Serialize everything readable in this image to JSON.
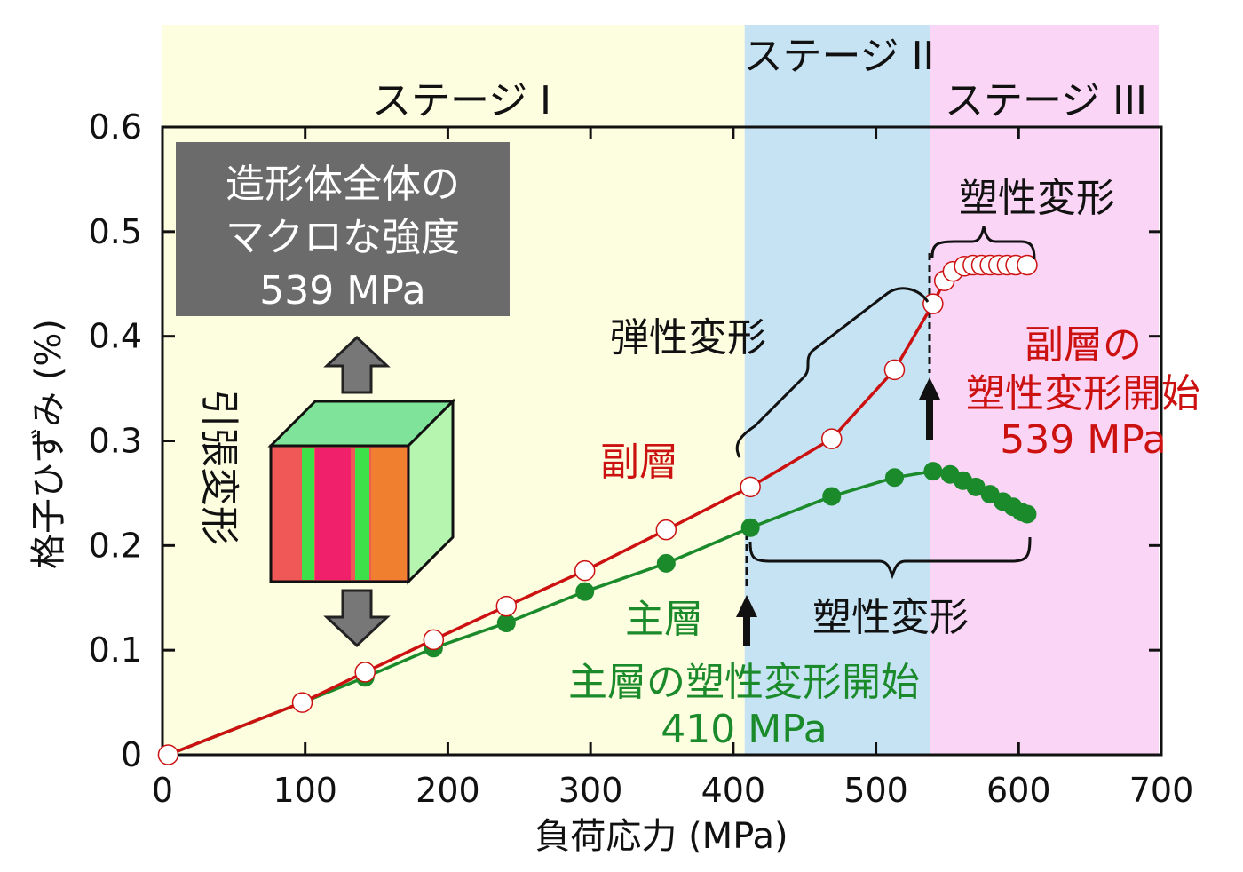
{
  "chart_data": {
    "type": "line",
    "xlabel": "負荷応力 (MPa)",
    "ylabel": "格子ひずみ (%)",
    "xlim": [
      0,
      700
    ],
    "ylim": [
      0,
      0.6
    ],
    "xticks": [
      "0",
      "100",
      "200",
      "300",
      "400",
      "500",
      "600",
      "700"
    ],
    "yticks": [
      "0",
      "0.1",
      "0.2",
      "0.3",
      "0.4",
      "0.5",
      "0.6"
    ],
    "grid": false,
    "stages": [
      {
        "label": "ステージ I",
        "from": 0,
        "to": 408,
        "color": "#fdfde0"
      },
      {
        "label": "ステージ II",
        "from": 408,
        "to": 538,
        "color": "#c5e3f3"
      },
      {
        "label": "ステージ III",
        "from": 538,
        "to": 700,
        "color": "#fbd5f5"
      }
    ],
    "series": [
      {
        "name": "副層",
        "color": "#cc1111",
        "marker": "open-circle",
        "x": [
          4,
          98,
          142,
          190,
          241,
          296,
          353,
          412,
          469,
          513,
          540,
          548,
          554,
          562,
          568,
          574,
          580,
          586,
          592,
          598,
          606
        ],
        "y": [
          0,
          0.05,
          0.079,
          0.11,
          0.142,
          0.176,
          0.215,
          0.256,
          0.302,
          0.368,
          0.431,
          0.453,
          0.462,
          0.467,
          0.468,
          0.468,
          0.468,
          0.468,
          0.468,
          0.468,
          0.468
        ]
      },
      {
        "name": "主層",
        "color": "#1a8a2a",
        "marker": "filled-circle",
        "x": [
          4,
          98,
          142,
          190,
          241,
          296,
          353,
          412,
          469,
          513,
          540,
          552,
          561,
          570,
          580,
          589,
          596,
          602,
          606
        ],
        "y": [
          0,
          0.05,
          0.074,
          0.102,
          0.126,
          0.156,
          0.183,
          0.217,
          0.247,
          0.265,
          0.271,
          0.268,
          0.262,
          0.256,
          0.249,
          0.242,
          0.237,
          0.232,
          0.23
        ]
      }
    ],
    "annotations": {
      "macro_box": [
        "造形体全体の",
        "マクロな強度",
        "539 MPa"
      ],
      "tensile": "引張変形",
      "elastic": "弾性変形",
      "plastic_top": "塑性変形",
      "plastic_bottom": "塑性変形",
      "sub_start": [
        "副層の",
        "塑性変形開始",
        "539 MPa"
      ],
      "main_start": [
        "主層の塑性変形開始",
        "410 MPa"
      ]
    }
  }
}
